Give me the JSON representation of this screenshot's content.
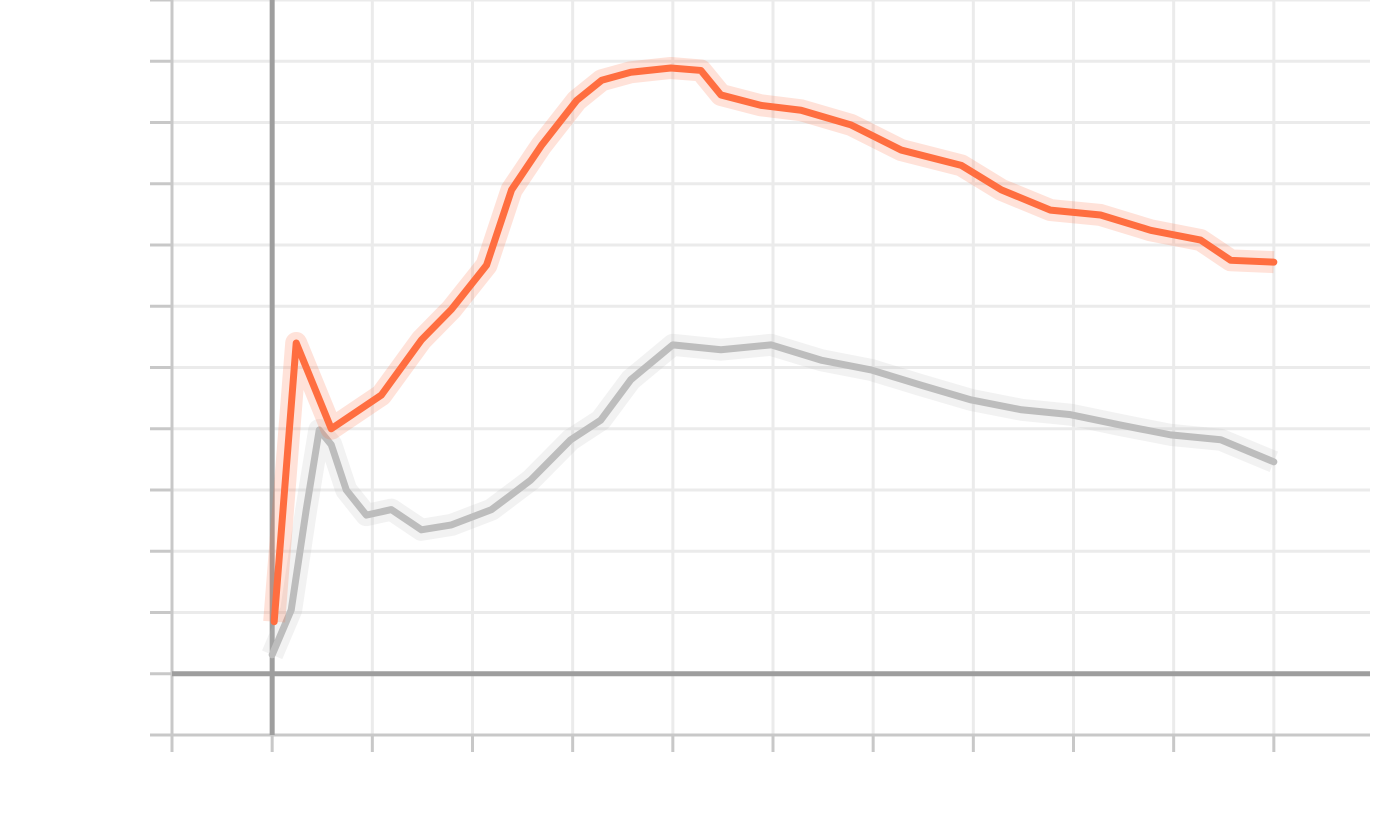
{
  "chart_data": {
    "type": "line",
    "xlim": [
      -1,
      11
    ],
    "ylim": [
      -1,
      11
    ],
    "xticks": [
      -1,
      0,
      1,
      2,
      3,
      4,
      5,
      6,
      7,
      8,
      9,
      10
    ],
    "yticks": [
      -1,
      0,
      1,
      2,
      3,
      4,
      5,
      6,
      7,
      8,
      9,
      10,
      11
    ],
    "grid": true,
    "series": [
      {
        "color": "#ff6e40",
        "x": [
          0.02,
          0.24,
          0.59,
          1.09,
          1.49,
          1.79,
          2.14,
          2.39,
          2.69,
          3.04,
          3.29,
          3.58,
          3.98,
          4.28,
          4.48,
          4.88,
          5.28,
          5.78,
          6.28,
          6.88,
          7.28,
          7.77,
          8.27,
          8.77,
          9.27,
          9.57,
          10.0
        ],
        "values": [
          0.85,
          5.4,
          4.0,
          4.55,
          5.45,
          5.95,
          6.67,
          7.9,
          8.63,
          9.36,
          9.69,
          9.82,
          9.89,
          9.85,
          9.45,
          9.28,
          9.2,
          8.96,
          8.55,
          8.3,
          7.9,
          7.57,
          7.49,
          7.24,
          7.08,
          6.75,
          6.72
        ]
      },
      {
        "color": "#bdbdbd",
        "x": [
          0,
          0.19,
          0.34,
          0.47,
          0.59,
          0.74,
          0.94,
          1.19,
          1.49,
          1.79,
          2.19,
          2.58,
          2.98,
          3.28,
          3.58,
          4.0,
          4.48,
          4.98,
          5.48,
          5.98,
          6.48,
          6.98,
          7.48,
          7.97,
          8.47,
          8.97,
          9.47,
          10.0
        ],
        "values": [
          0.31,
          1.04,
          2.68,
          3.98,
          3.74,
          3.0,
          2.59,
          2.68,
          2.35,
          2.43,
          2.68,
          3.16,
          3.82,
          4.14,
          4.8,
          5.37,
          5.29,
          5.37,
          5.12,
          4.96,
          4.71,
          4.47,
          4.31,
          4.23,
          4.06,
          3.9,
          3.82,
          3.46
        ]
      }
    ]
  }
}
